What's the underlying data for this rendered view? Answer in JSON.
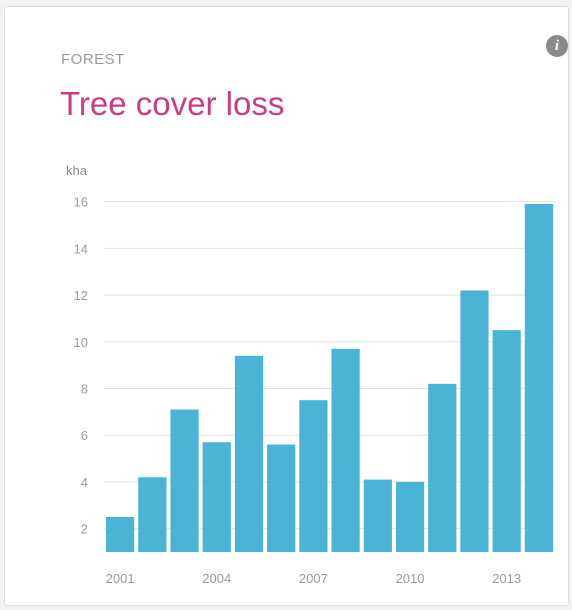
{
  "widget": {
    "category": "FOREST",
    "title": "Tree cover loss",
    "info_icon": "info-icon"
  },
  "colors": {
    "bar": "#4ab3d6",
    "title": "#c83d86",
    "grid": "#e3e3e3",
    "tick": "#9a9a9a"
  },
  "chart_data": {
    "type": "bar",
    "ylabel": "kha",
    "xlabel": "",
    "title": "Tree cover loss",
    "categories": [
      "2001",
      "2002",
      "2003",
      "2004",
      "2005",
      "2006",
      "2007",
      "2008",
      "2009",
      "2010",
      "2011",
      "2012",
      "2013",
      "2014"
    ],
    "values": [
      2.5,
      4.2,
      7.1,
      5.7,
      9.4,
      5.6,
      7.5,
      9.7,
      4.1,
      4.0,
      8.2,
      12.2,
      10.5,
      15.9
    ],
    "ylim": [
      1,
      16.5
    ],
    "yticks": [
      2,
      4,
      6,
      8,
      10,
      12,
      14,
      16
    ],
    "xticks": [
      "2001",
      "2004",
      "2007",
      "2010",
      "2013"
    ],
    "grid": true,
    "legend": "none"
  }
}
